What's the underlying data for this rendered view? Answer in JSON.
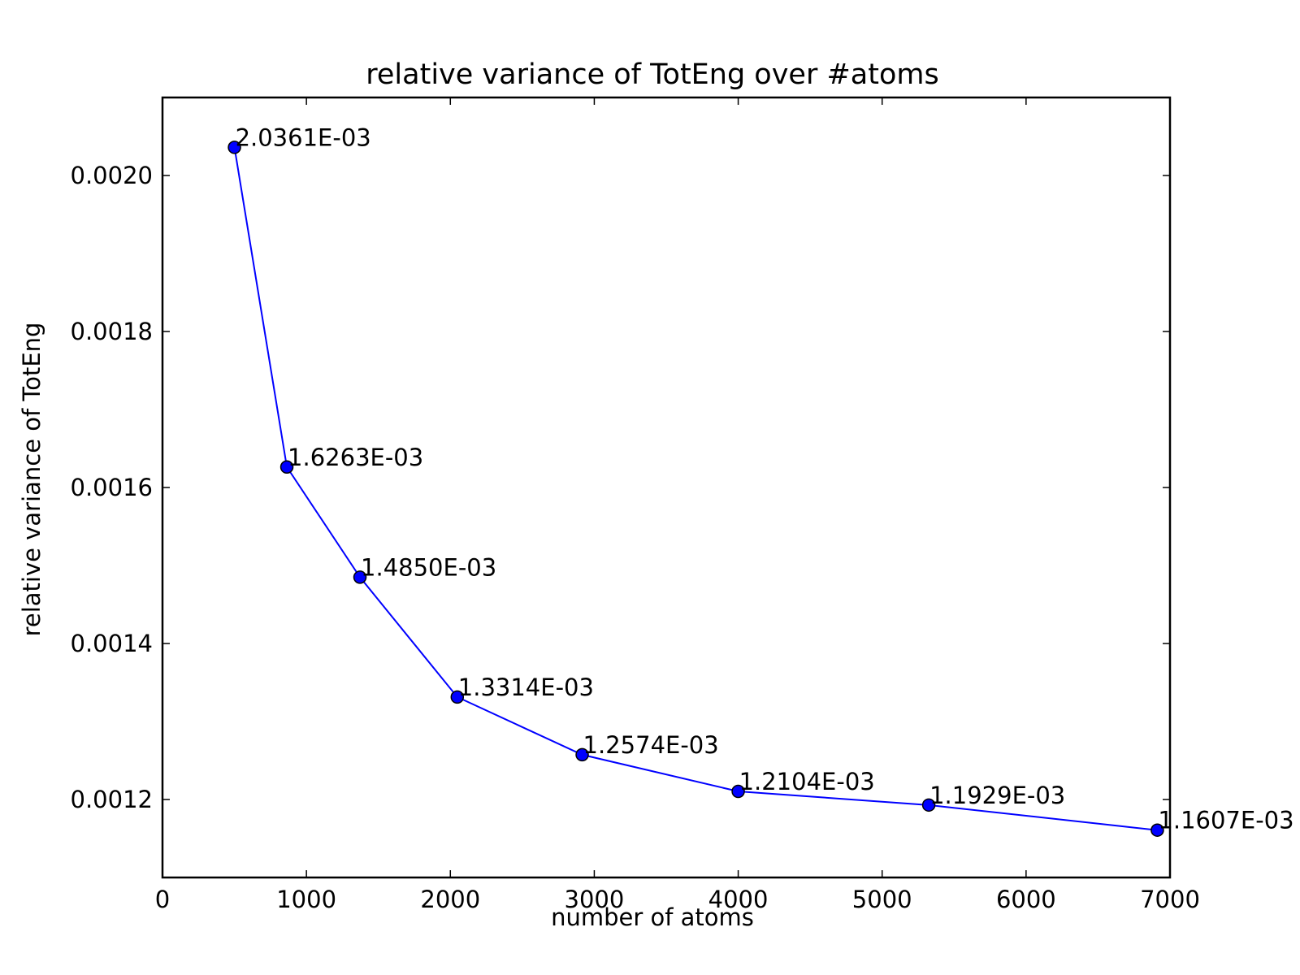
{
  "chart_data": {
    "type": "line",
    "title": "relative variance of TotEng over #atoms",
    "xlabel": "number of atoms",
    "ylabel": "relative variance of TotEng",
    "xlim": [
      0,
      7000
    ],
    "ylim": [
      0.0011,
      0.0021
    ],
    "xticks": [
      0,
      1000,
      2000,
      3000,
      4000,
      5000,
      6000,
      7000
    ],
    "xtick_labels": [
      "0",
      "1000",
      "2000",
      "3000",
      "4000",
      "5000",
      "6000",
      "7000"
    ],
    "yticks": [
      0.0012,
      0.0014,
      0.0016,
      0.0018,
      0.002
    ],
    "ytick_labels": [
      "0.0012",
      "0.0014",
      "0.0016",
      "0.0018",
      "0.0020"
    ],
    "grid": false,
    "legend": "none",
    "series": [
      {
        "color": "#0000ff",
        "marker": "circle",
        "x": [
          500,
          864,
          1372,
          2048,
          2916,
          4000,
          5324,
          6912
        ],
        "y": [
          0.0020361,
          0.0016263,
          0.001485,
          0.0013314,
          0.0012574,
          0.0012104,
          0.0011929,
          0.0011607
        ],
        "labels": [
          "2.0361E-03",
          "1.6263E-03",
          "1.4850E-03",
          "1.3314E-03",
          "1.2574E-03",
          "1.2104E-03",
          "1.1929E-03",
          "1.1607E-03"
        ]
      }
    ]
  }
}
